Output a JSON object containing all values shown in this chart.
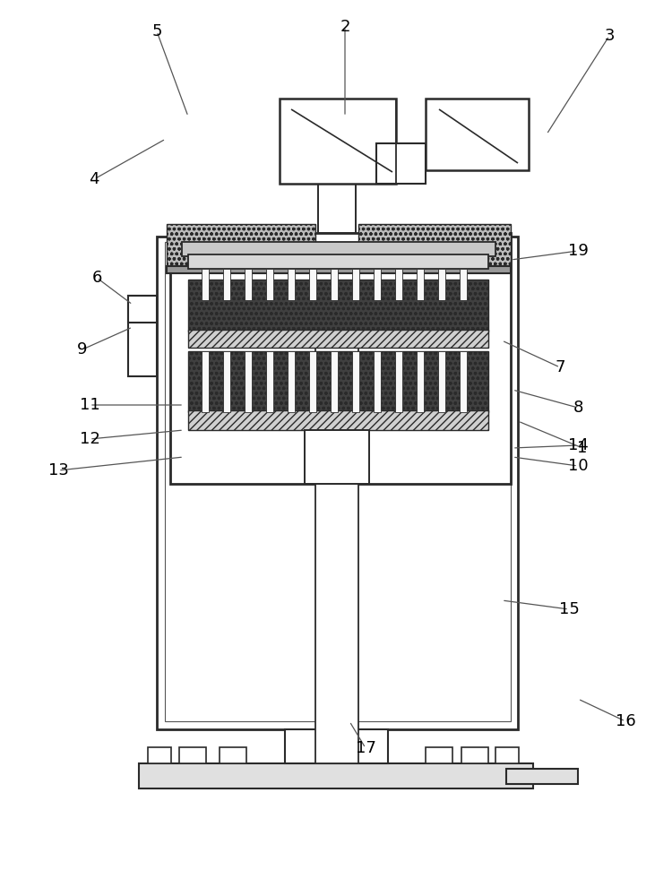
{
  "lc": "#2a2a2a",
  "annotations": [
    [
      "1",
      578,
      530,
      650,
      500
    ],
    [
      "2",
      385,
      870,
      385,
      970
    ],
    [
      "3",
      610,
      850,
      680,
      960
    ],
    [
      "4",
      185,
      845,
      105,
      800
    ],
    [
      "5",
      210,
      870,
      175,
      965
    ],
    [
      "6",
      148,
      660,
      108,
      690
    ],
    [
      "7",
      560,
      620,
      625,
      590
    ],
    [
      "8",
      572,
      565,
      645,
      545
    ],
    [
      "9",
      148,
      635,
      92,
      610
    ],
    [
      "10",
      572,
      490,
      645,
      480
    ],
    [
      "11",
      205,
      548,
      100,
      548
    ],
    [
      "12",
      205,
      520,
      100,
      510
    ],
    [
      "13",
      205,
      490,
      65,
      475
    ],
    [
      "14",
      572,
      500,
      645,
      503
    ],
    [
      "15",
      560,
      330,
      635,
      320
    ],
    [
      "16",
      645,
      220,
      698,
      195
    ],
    [
      "17",
      390,
      195,
      408,
      165
    ],
    [
      "19",
      570,
      710,
      645,
      720
    ]
  ]
}
